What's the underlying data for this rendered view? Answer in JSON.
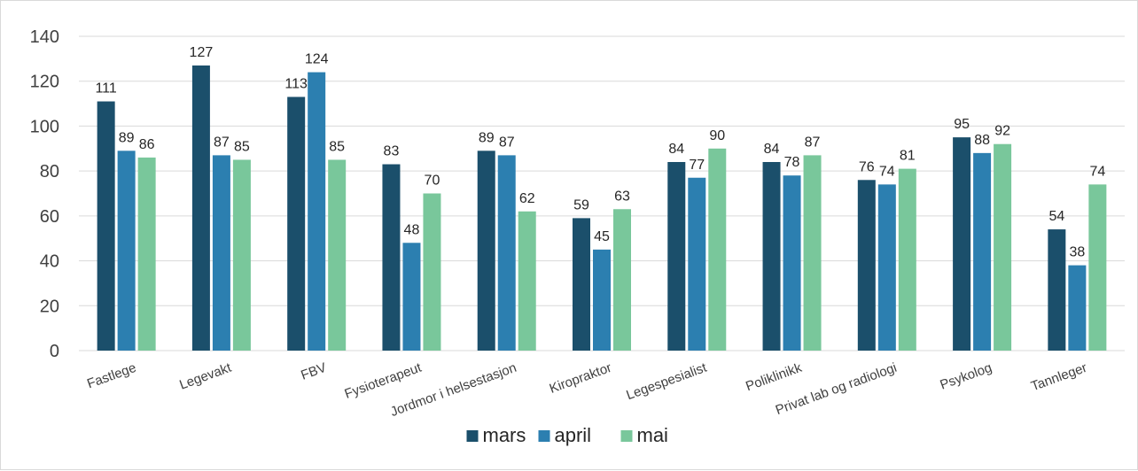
{
  "chart_data": {
    "type": "bar",
    "categories": [
      "Fastlege",
      "Legevakt",
      "FBV",
      "Fysioterapeut",
      "Jordmor i helsestasjon",
      "Kiropraktor",
      "Legespesialist",
      "Poliklinikk",
      "Privat lab og radiologi",
      "Psykolog",
      "Tannleger"
    ],
    "series": [
      {
        "name": "mars",
        "color": "#1b4f6b",
        "values": [
          111,
          127,
          113,
          83,
          89,
          59,
          84,
          84,
          76,
          95,
          54
        ]
      },
      {
        "name": "april",
        "color": "#2c7fb0",
        "values": [
          89,
          87,
          124,
          48,
          87,
          45,
          77,
          78,
          74,
          88,
          38
        ]
      },
      {
        "name": "mai",
        "color": "#79c79b",
        "values": [
          86,
          85,
          85,
          70,
          62,
          63,
          90,
          87,
          81,
          92,
          74
        ]
      }
    ],
    "ylim": [
      0,
      140
    ],
    "yticks": [
      0,
      20,
      40,
      60,
      80,
      100,
      120,
      140
    ],
    "grid": true,
    "legend": "bottom"
  }
}
